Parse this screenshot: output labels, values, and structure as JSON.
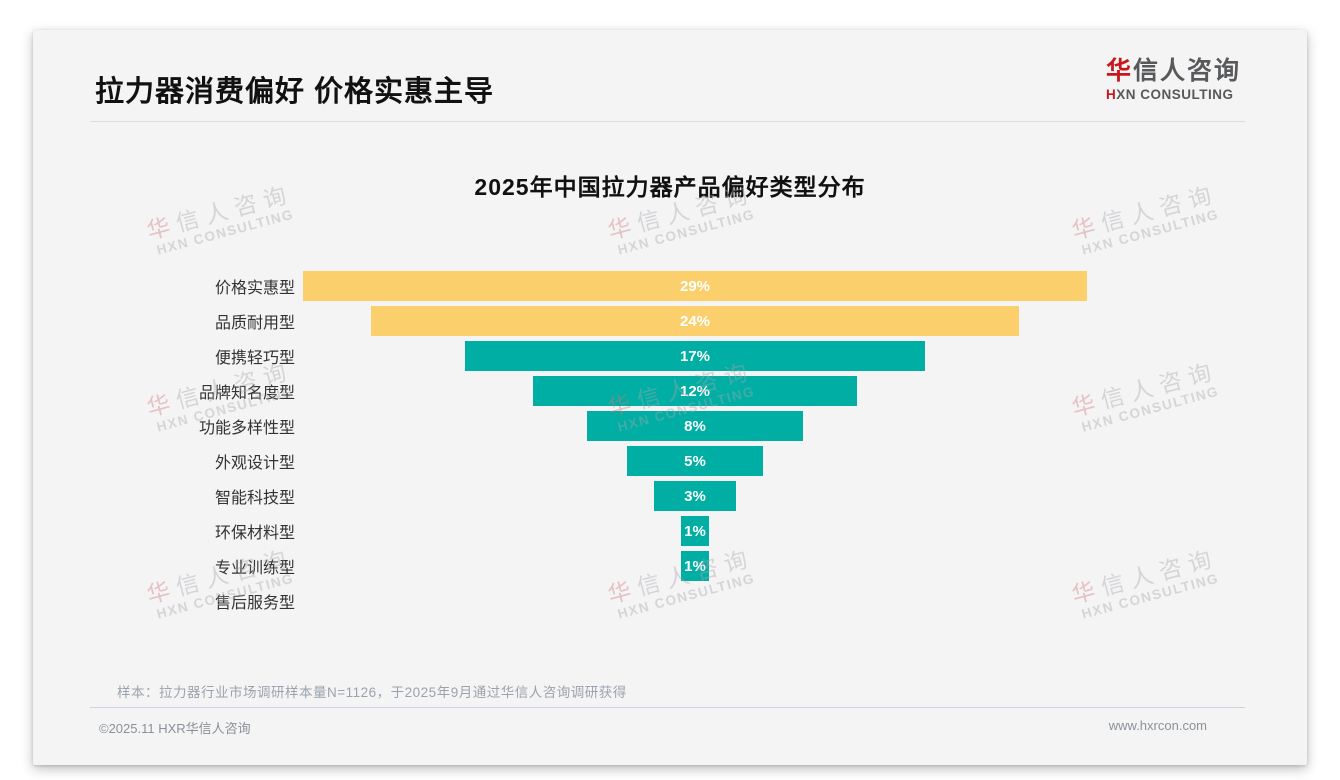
{
  "page": {
    "title": "拉力器消费偏好 价格实惠主导",
    "logo": {
      "cn_first": "华",
      "cn_rest": "信人咨询",
      "en_first": "H",
      "en_rest": "XN CONSULTING"
    },
    "watermark": {
      "cn_first": "华",
      "cn_rest": "信人咨询",
      "en": "HXN CONSULTING"
    },
    "note": "样本：拉力器行业市场调研样本量N=1126，于2025年9月通过华信人咨询调研获得",
    "footer": {
      "left": "©2025.11 HXR华信人咨询",
      "right": "www.hxrcon.com"
    }
  },
  "chart_data": {
    "type": "bar",
    "variant": "centered-funnel-horizontal",
    "title": "2025年中国拉力器产品偏好类型分布",
    "categories": [
      "价格实惠型",
      "品质耐用型",
      "便携轻巧型",
      "品牌知名度型",
      "功能多样性型",
      "外观设计型",
      "智能科技型",
      "环保材料型",
      "专业训练型",
      "售后服务型"
    ],
    "values": [
      29,
      24,
      17,
      12,
      8,
      5,
      3,
      1,
      1,
      0
    ],
    "value_labels": [
      "29%",
      "24%",
      "17%",
      "12%",
      "8%",
      "5%",
      "3%",
      "1%",
      "1%",
      ""
    ],
    "unit": "%",
    "max_value": 29,
    "highlight_count": 2,
    "colors": {
      "highlight": "#FBCF6B",
      "default": "#00AEA4"
    },
    "xlabel": "",
    "ylabel": "",
    "grid": false,
    "legend": false
  }
}
